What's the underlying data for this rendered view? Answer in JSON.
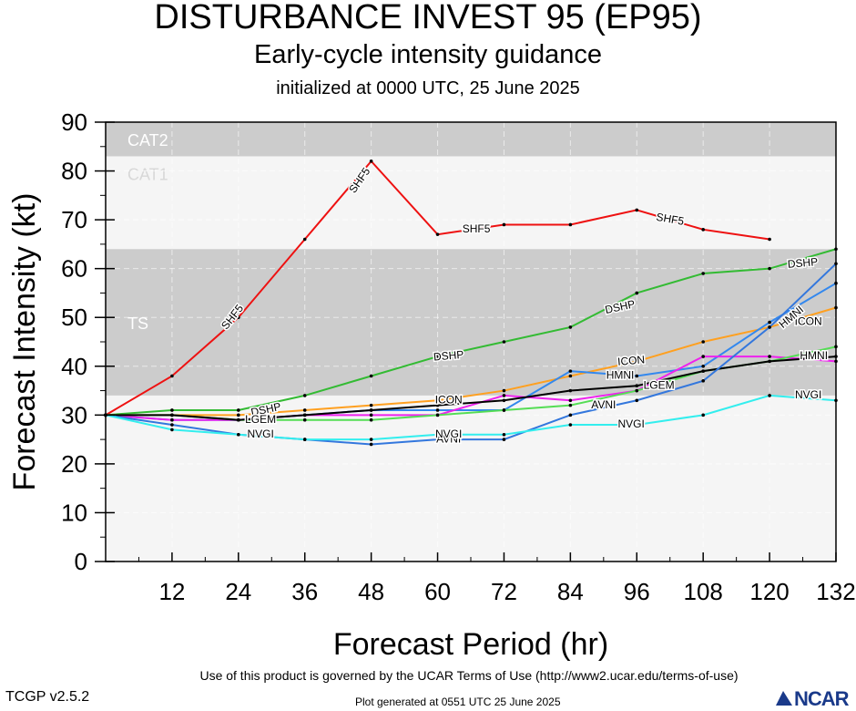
{
  "header": {
    "title": "DISTURBANCE INVEST 95 (EP95)",
    "subtitle": "Early-cycle intensity guidance",
    "initialized": "initialized at 0000 UTC, 25 June 2025"
  },
  "footer": {
    "terms": "Use of this product is governed by the UCAR Terms of Use (http://www2.ucar.edu/terms-of-use)",
    "version": "TCGP v2.5.2",
    "generated": "Plot generated at 0551 UTC   25 June 2025",
    "logo": "NCAR"
  },
  "colors": {
    "band_dark": "#cccccc",
    "band_light": "#f5f5f5",
    "SHF5": "#ee1111",
    "DSHP": "#33bb33",
    "ICON": "#ffa020",
    "HMNI": "#3388ee",
    "LGEM": "#55dd55",
    "NVGI": "#33eeee",
    "AVNI": "#3377dd",
    "CONSENSUS": "#000000",
    "MAGENTA": "#ee22ee"
  },
  "chart_data": {
    "type": "line",
    "xlabel": "Forecast Period (hr)",
    "ylabel": "Forecast Intensity (kt)",
    "xlim": [
      0,
      132
    ],
    "ylim": [
      0,
      90
    ],
    "xticks": [
      12,
      24,
      36,
      48,
      60,
      72,
      84,
      96,
      108,
      120,
      132
    ],
    "yticks": [
      0,
      10,
      20,
      30,
      40,
      50,
      60,
      70,
      80,
      90
    ],
    "bands": [
      {
        "label": "CAT2",
        "from": 83,
        "to": 90,
        "shade": "dark"
      },
      {
        "label": "CAT1",
        "from": 64,
        "to": 83,
        "shade": "light"
      },
      {
        "label": "TS",
        "from": 34,
        "to": 64,
        "shade": "dark"
      },
      {
        "label": "",
        "from": 0,
        "to": 34,
        "shade": "light"
      }
    ],
    "series": [
      {
        "name": "SHF5",
        "color_key": "SHF5",
        "x": [
          0,
          12,
          24,
          36,
          48,
          60,
          72,
          84,
          96,
          108,
          120
        ],
        "values": [
          30,
          38,
          50,
          66,
          82,
          67,
          69,
          69,
          72,
          68,
          66
        ]
      },
      {
        "name": "DSHP",
        "color_key": "DSHP",
        "x": [
          0,
          12,
          24,
          36,
          48,
          60,
          72,
          84,
          96,
          108,
          120,
          132
        ],
        "values": [
          30,
          31,
          31,
          34,
          38,
          42,
          45,
          48,
          55,
          59,
          60,
          64
        ]
      },
      {
        "name": "ICON",
        "color_key": "ICON",
        "x": [
          0,
          12,
          24,
          36,
          48,
          60,
          72,
          84,
          96,
          108,
          120,
          132
        ],
        "values": [
          30,
          30,
          30,
          31,
          32,
          33,
          35,
          38,
          41,
          45,
          48,
          52
        ]
      },
      {
        "name": "HMNI",
        "color_key": "HMNI",
        "x": [
          0,
          12,
          24,
          36,
          48,
          60,
          72,
          84,
          96,
          108,
          120,
          132
        ],
        "values": [
          30,
          29,
          29,
          30,
          31,
          31,
          31,
          39,
          38,
          40,
          49,
          57
        ]
      },
      {
        "name": "",
        "color_key": "MAGENTA",
        "x": [
          0,
          12,
          24,
          36,
          48,
          60,
          72,
          84,
          96,
          108,
          120,
          132
        ],
        "values": [
          30,
          29,
          29,
          30,
          30,
          30,
          34,
          33,
          35,
          42,
          42,
          41
        ]
      },
      {
        "name": "LGEM",
        "color_key": "LGEM",
        "x": [
          0,
          12,
          24,
          36,
          48,
          60,
          72,
          84,
          96,
          108,
          120,
          132
        ],
        "values": [
          30,
          30,
          29,
          29,
          29,
          30,
          31,
          32,
          35,
          39,
          41,
          44
        ]
      },
      {
        "name": "",
        "color_key": "CONSENSUS",
        "x": [
          0,
          12,
          24,
          36,
          48,
          60,
          72,
          84,
          96,
          108,
          120,
          132
        ],
        "values": [
          30,
          30,
          29,
          30,
          31,
          32,
          33,
          35,
          36,
          39,
          41,
          42
        ]
      },
      {
        "name": "AVNI",
        "color_key": "AVNI",
        "x": [
          0,
          12,
          24,
          36,
          48,
          60,
          72,
          84,
          96,
          108,
          120,
          132
        ],
        "values": [
          30,
          28,
          26,
          25,
          24,
          25,
          25,
          30,
          33,
          37,
          48,
          61
        ]
      },
      {
        "name": "NVGI",
        "color_key": "NVGI",
        "x": [
          0,
          12,
          24,
          36,
          48,
          60,
          72,
          84,
          96,
          108,
          120,
          132
        ],
        "values": [
          30,
          27,
          26,
          25,
          25,
          26,
          26,
          28,
          28,
          30,
          34,
          33
        ]
      }
    ],
    "annotations": [
      {
        "text": "SHF5",
        "x": 23,
        "y": 50,
        "color_key": "SHF5",
        "angle": -52
      },
      {
        "text": "SHF5",
        "x": 46,
        "y": 78,
        "color_key": "SHF5",
        "angle": -55
      },
      {
        "text": "SHF5",
        "x": 67,
        "y": 68,
        "color_key": "SHF5",
        "angle": 0
      },
      {
        "text": "SHF5",
        "x": 102,
        "y": 70,
        "color_key": "SHF5",
        "angle": 10
      },
      {
        "text": "DSHP",
        "x": 62,
        "y": 42,
        "color_key": "DSHP",
        "angle": -5
      },
      {
        "text": "DSHP",
        "x": 93,
        "y": 52,
        "color_key": "DSHP",
        "angle": -12
      },
      {
        "text": "DSHP",
        "x": 126,
        "y": 61,
        "color_key": "DSHP",
        "angle": -5
      },
      {
        "text": "DSHP",
        "x": 29,
        "y": 31,
        "color_key": "DSHP",
        "angle": -12
      },
      {
        "text": "ICON",
        "x": 62,
        "y": 33,
        "color_key": "ICON",
        "angle": 0
      },
      {
        "text": "ICON",
        "x": 95,
        "y": 41,
        "color_key": "ICON",
        "angle": -5
      },
      {
        "text": "ICON",
        "x": 127,
        "y": 49,
        "color_key": "ICON",
        "angle": 0
      },
      {
        "text": "HMNI",
        "x": 93,
        "y": 38,
        "color_key": "HMNI",
        "angle": 0
      },
      {
        "text": "HMNI",
        "x": 124,
        "y": 50,
        "color_key": "HMNI",
        "angle": -40
      },
      {
        "text": "HMNI",
        "x": 128,
        "y": 42,
        "color_key": "HMNI",
        "angle": 0
      },
      {
        "text": "LGEM",
        "x": 28,
        "y": 29,
        "color_key": "LGEM",
        "angle": 0
      },
      {
        "text": "LGEM",
        "x": 100,
        "y": 36,
        "color_key": "LGEM",
        "angle": 0
      },
      {
        "text": "AVNI",
        "x": 90,
        "y": 32,
        "color_key": "AVNI",
        "angle": 0
      },
      {
        "text": "AVNI",
        "x": 62,
        "y": 25,
        "color_key": "AVNI",
        "angle": 0
      },
      {
        "text": "NVGI",
        "x": 28,
        "y": 26,
        "color_key": "NVGI",
        "angle": 0
      },
      {
        "text": "NVGI",
        "x": 62,
        "y": 26,
        "color_key": "NVGI",
        "angle": 0
      },
      {
        "text": "NVGI",
        "x": 95,
        "y": 28,
        "color_key": "NVGI",
        "angle": 0
      },
      {
        "text": "NVGI",
        "x": 127,
        "y": 34,
        "color_key": "NVGI",
        "angle": 0
      }
    ]
  }
}
